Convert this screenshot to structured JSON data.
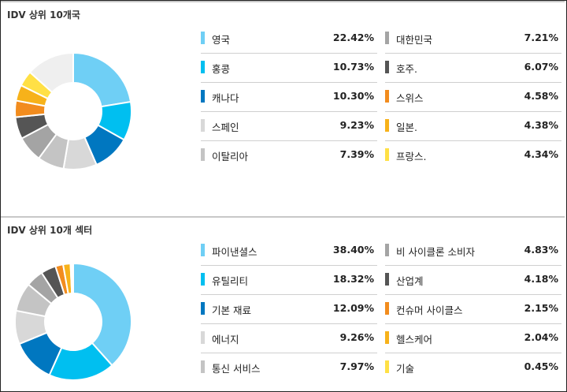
{
  "sections": [
    {
      "title": "IDV 상위 10개국",
      "items": [
        {
          "name": "영국",
          "value": "22.42%",
          "color": "#6fcff5"
        },
        {
          "name": "홍콩",
          "value": "10.73%",
          "color": "#00bff0"
        },
        {
          "name": "캐나다",
          "value": "10.30%",
          "color": "#0077c0"
        },
        {
          "name": "스페인",
          "value": "9.23%",
          "color": "#d8d8d8"
        },
        {
          "name": "이탈리아",
          "value": "7.39%",
          "color": "#c4c4c4"
        },
        {
          "name": "대한민국",
          "value": "7.21%",
          "color": "#a4a4a4"
        },
        {
          "name": "호주.",
          "value": "6.07%",
          "color": "#555555"
        },
        {
          "name": "스위스",
          "value": "4.58%",
          "color": "#f28c1e"
        },
        {
          "name": "일본.",
          "value": "4.38%",
          "color": "#f7b21a"
        },
        {
          "name": "프랑스.",
          "value": "4.34%",
          "color": "#ffe045"
        }
      ]
    },
    {
      "title": "IDV 상위 10개 섹터",
      "items": [
        {
          "name": "파이낸셜스",
          "value": "38.40%",
          "color": "#6fcff5"
        },
        {
          "name": "유틸리티",
          "value": "18.32%",
          "color": "#00bff0"
        },
        {
          "name": "기본 재료",
          "value": "12.09%",
          "color": "#0077c0"
        },
        {
          "name": "에너지",
          "value": "9.26%",
          "color": "#d8d8d8"
        },
        {
          "name": "통신 서비스",
          "value": "7.97%",
          "color": "#c4c4c4"
        },
        {
          "name": "비 사이클론 소비자",
          "value": "4.83%",
          "color": "#a4a4a4"
        },
        {
          "name": "산업계",
          "value": "4.18%",
          "color": "#555555"
        },
        {
          "name": "컨슈머 사이클스",
          "value": "2.15%",
          "color": "#f28c1e"
        },
        {
          "name": "헬스케어",
          "value": "2.04%",
          "color": "#f7b21a"
        },
        {
          "name": "기술",
          "value": "0.45%",
          "color": "#ffe045"
        }
      ]
    }
  ],
  "chart_data": [
    {
      "type": "pie",
      "title": "IDV 상위 10개국",
      "categories": [
        "영국",
        "홍콩",
        "캐나다",
        "스페인",
        "이탈리아",
        "대한민국",
        "호주.",
        "스위스",
        "일본.",
        "프랑스."
      ],
      "values": [
        22.42,
        10.73,
        10.3,
        9.23,
        7.39,
        7.21,
        6.07,
        4.58,
        4.38,
        4.34
      ],
      "colors": [
        "#6fcff5",
        "#00bff0",
        "#0077c0",
        "#d8d8d8",
        "#c4c4c4",
        "#a4a4a4",
        "#555555",
        "#f28c1e",
        "#f7b21a",
        "#ffe045"
      ],
      "remainder_color": "#efefef",
      "legend": "right"
    },
    {
      "type": "pie",
      "title": "IDV 상위 10개 섹터",
      "categories": [
        "파이낸셜스",
        "유틸리티",
        "기본 재료",
        "에너지",
        "통신 서비스",
        "비 사이클론 소비자",
        "산업계",
        "컨슈머 사이클스",
        "헬스케어",
        "기술"
      ],
      "values": [
        38.4,
        18.32,
        12.09,
        9.26,
        7.97,
        4.83,
        4.18,
        2.15,
        2.04,
        0.45
      ],
      "colors": [
        "#6fcff5",
        "#00bff0",
        "#0077c0",
        "#d8d8d8",
        "#c4c4c4",
        "#a4a4a4",
        "#555555",
        "#f28c1e",
        "#f7b21a",
        "#ffe045"
      ],
      "remainder_color": "#efefef",
      "legend": "right"
    }
  ]
}
